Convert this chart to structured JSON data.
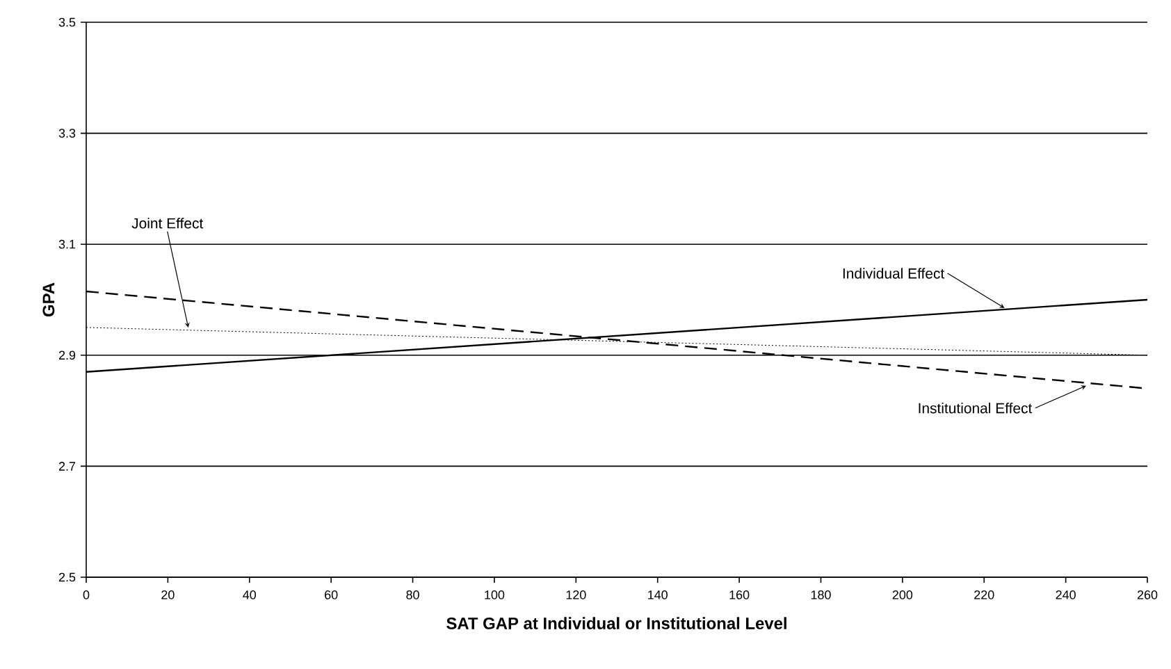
{
  "chart_data": {
    "type": "line",
    "xlabel": "SAT GAP at Individual or Institutional Level",
    "ylabel": "GPA",
    "x": [
      0,
      260
    ],
    "series": [
      {
        "color": "#000000",
        "line_style": "solid",
        "values": [
          2.87,
          3.0
        ]
      },
      {
        "color": "#000000",
        "line_style": "dashed",
        "values": [
          3.015,
          2.84
        ]
      },
      {
        "color": "#000000",
        "line_style": "dotted",
        "values": [
          2.95,
          2.9
        ]
      }
    ],
    "annotations": [
      {
        "text": "Joint Effect",
        "x": 25,
        "y": 2.95
      },
      {
        "text": "Individual Effect",
        "x": 225,
        "y": 2.985
      },
      {
        "text": "Institutional Effect",
        "x": 245,
        "y": 2.845
      }
    ],
    "xlim": [
      0,
      260
    ],
    "ylim": [
      2.5,
      3.5
    ],
    "xticks": [
      0,
      20,
      40,
      60,
      80,
      100,
      120,
      140,
      160,
      180,
      200,
      220,
      240,
      260
    ],
    "yticks": [
      2.5,
      2.7,
      2.9,
      3.1,
      3.3,
      3.5
    ],
    "grid": "y",
    "marker": "none"
  }
}
